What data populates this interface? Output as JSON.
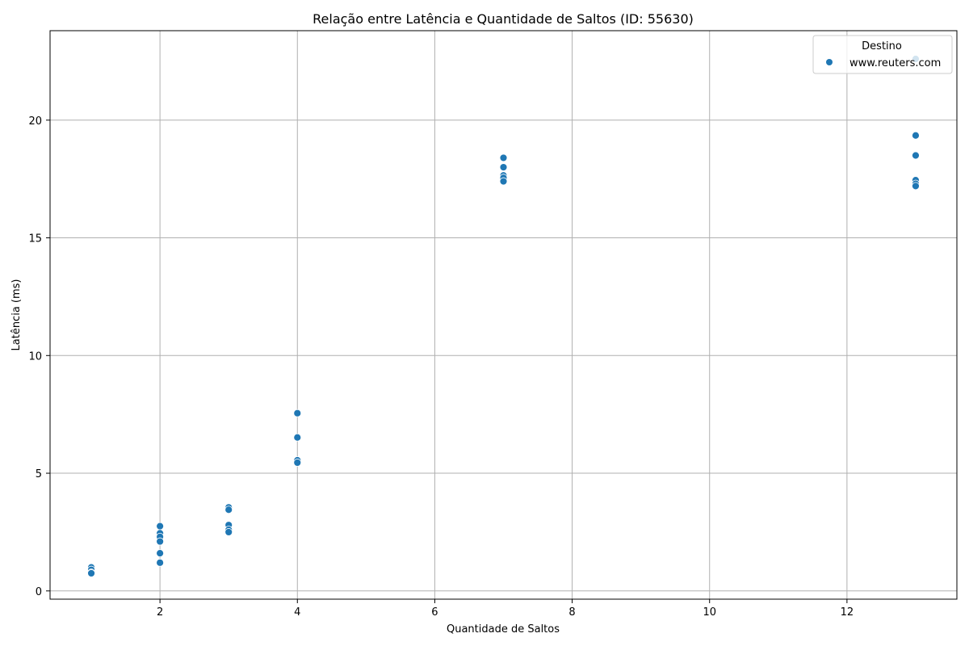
{
  "chart_data": {
    "type": "scatter",
    "title": "Relação entre Latência e Quantidade de Saltos (ID: 55630)",
    "xlabel": "Quantidade de Saltos",
    "ylabel": "Latência (ms)",
    "xlim": [
      0.4,
      13.6
    ],
    "ylim": [
      -0.35,
      23.8
    ],
    "xticks": [
      2,
      4,
      6,
      8,
      10,
      12
    ],
    "yticks": [
      0,
      5,
      10,
      15,
      20
    ],
    "grid": true,
    "legend": {
      "title": "Destino",
      "placement": "top-right"
    },
    "colors": {
      "series": "#1f77b4",
      "grid": "#b0b0b0",
      "axis": "#000000"
    },
    "series": [
      {
        "name": "www.reuters.com",
        "points": [
          {
            "x": 1,
            "y": 1.0
          },
          {
            "x": 1,
            "y": 0.9
          },
          {
            "x": 1,
            "y": 0.78
          },
          {
            "x": 1,
            "y": 0.75
          },
          {
            "x": 2,
            "y": 2.75
          },
          {
            "x": 2,
            "y": 2.45
          },
          {
            "x": 2,
            "y": 2.3
          },
          {
            "x": 2,
            "y": 2.1
          },
          {
            "x": 2,
            "y": 1.6
          },
          {
            "x": 2,
            "y": 1.2
          },
          {
            "x": 3,
            "y": 3.55
          },
          {
            "x": 3,
            "y": 3.45
          },
          {
            "x": 3,
            "y": 2.8
          },
          {
            "x": 3,
            "y": 2.6
          },
          {
            "x": 3,
            "y": 2.5
          },
          {
            "x": 4,
            "y": 7.55
          },
          {
            "x": 4,
            "y": 6.52
          },
          {
            "x": 4,
            "y": 5.55
          },
          {
            "x": 4,
            "y": 5.45
          },
          {
            "x": 7,
            "y": 18.4
          },
          {
            "x": 7,
            "y": 18.0
          },
          {
            "x": 7,
            "y": 17.65
          },
          {
            "x": 7,
            "y": 17.55
          },
          {
            "x": 7,
            "y": 17.4
          },
          {
            "x": 13,
            "y": 22.6
          },
          {
            "x": 13,
            "y": 19.35
          },
          {
            "x": 13,
            "y": 18.5
          },
          {
            "x": 13,
            "y": 17.45
          },
          {
            "x": 13,
            "y": 17.3
          },
          {
            "x": 13,
            "y": 17.2
          }
        ]
      }
    ]
  }
}
